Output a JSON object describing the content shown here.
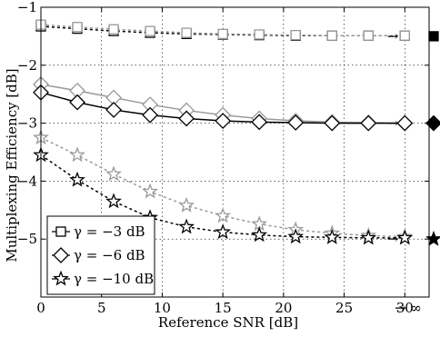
{
  "chart_data": {
    "type": "line",
    "title": "",
    "xlabel": "Reference SNR [dB]",
    "ylabel": "Multiplexing Efficiency [dB]",
    "xlim": [
      0,
      32
    ],
    "ylim": [
      -6,
      -1
    ],
    "x_ticks": [
      "0",
      "5",
      "10",
      "15",
      "20",
      "25",
      "30"
    ],
    "y_ticks": [
      "−5",
      "−4",
      "−3",
      "−2",
      "−1"
    ],
    "grid": true,
    "legend_position": "bottom-left",
    "x": [
      0,
      3,
      6,
      9,
      12,
      15,
      18,
      21,
      24,
      27,
      30
    ],
    "asymptote_label": "→ ∞",
    "asymptote_arrow": "→",
    "legend": [
      {
        "label": "γ = −3 dB",
        "marker": "square"
      },
      {
        "label": "γ = −6 dB",
        "marker": "diamond"
      },
      {
        "label": "γ = −10 dB",
        "marker": "star"
      }
    ],
    "series": [
      {
        "marker": "square",
        "color": "#000000",
        "dash": true,
        "group": "γ = −3 dB",
        "values": [
          -1.33,
          -1.37,
          -1.41,
          -1.44,
          -1.46,
          -1.47,
          -1.48,
          -1.49,
          -1.49,
          -1.49,
          -1.49
        ]
      },
      {
        "marker": "square",
        "color": "#999999",
        "dash": true,
        "group": "γ = −3 dB",
        "values": [
          -1.3,
          -1.34,
          -1.38,
          -1.41,
          -1.44,
          -1.46,
          -1.47,
          -1.48,
          -1.49,
          -1.49,
          -1.49
        ]
      },
      {
        "marker": "diamond",
        "color": "#999999",
        "dash": false,
        "group": "γ = −6 dB",
        "values": [
          -2.33,
          -2.44,
          -2.56,
          -2.68,
          -2.78,
          -2.86,
          -2.92,
          -2.96,
          -2.98,
          -2.99,
          -3.0
        ]
      },
      {
        "marker": "diamond",
        "color": "#000000",
        "dash": false,
        "group": "γ = −6 dB",
        "values": [
          -2.47,
          -2.64,
          -2.77,
          -2.86,
          -2.92,
          -2.96,
          -2.98,
          -2.99,
          -3.0,
          -3.0,
          -3.0
        ]
      },
      {
        "marker": "star",
        "color": "#999999",
        "dash": true,
        "group": "γ = −10 dB",
        "values": [
          -3.25,
          -3.55,
          -3.88,
          -4.18,
          -4.42,
          -4.6,
          -4.74,
          -4.84,
          -4.9,
          -4.94,
          -4.96
        ]
      },
      {
        "marker": "star",
        "color": "#000000",
        "dash": true,
        "group": "γ = −10 dB",
        "values": [
          -3.55,
          -3.98,
          -4.35,
          -4.63,
          -4.79,
          -4.88,
          -4.93,
          -4.96,
          -4.97,
          -4.98,
          -4.98
        ]
      }
    ],
    "limits": [
      {
        "marker": "square",
        "value": -1.5
      },
      {
        "marker": "diamond",
        "value": -3.0
      },
      {
        "marker": "star",
        "value": -5.0
      }
    ]
  }
}
